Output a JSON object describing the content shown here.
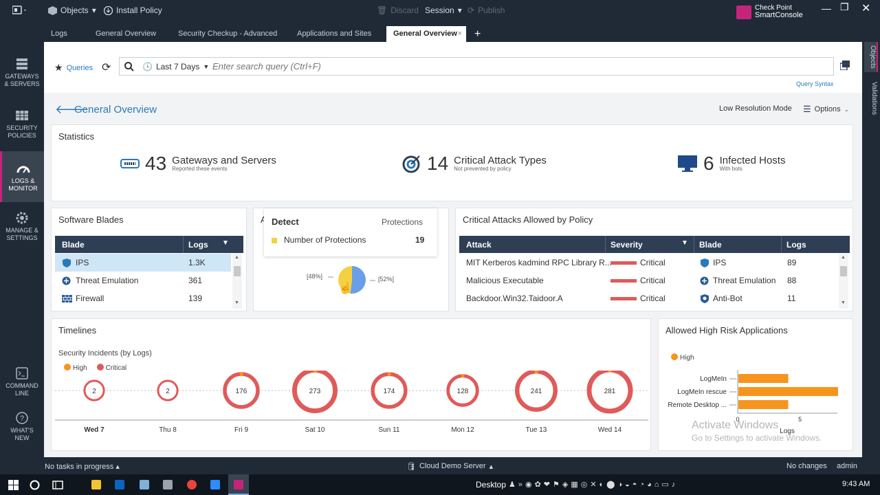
{
  "topbar": {
    "objects": "Objects",
    "install_policy": "Install Policy",
    "discard": "Discard",
    "session": "Session",
    "publish": "Publish",
    "brand_line1": "Check Point",
    "brand_line2": "SmartConsole"
  },
  "tabs": [
    "Logs",
    "General Overview",
    "Security Checkup - Advanced",
    "Applications and Sites",
    "General Overview"
  ],
  "sidenav": [
    {
      "label1": "GATEWAYS",
      "label2": "& SERVERS"
    },
    {
      "label1": "SECURITY",
      "label2": "POLICIES"
    },
    {
      "label1": "LOGS &",
      "label2": "MONITOR"
    },
    {
      "label1": "MANAGE &",
      "label2": "SETTINGS"
    },
    {
      "label1": "COMMAND",
      "label2": "LINE"
    },
    {
      "label1": "WHAT'S",
      "label2": "NEW"
    }
  ],
  "rightnav": {
    "objects": "Objects",
    "validations": "Validations"
  },
  "query": {
    "queries_label": "Queries",
    "time_range": "Last 7 Days",
    "search_placeholder": "Enter search query (Ctrl+F)",
    "syntax_link": "Query Syntax"
  },
  "view": {
    "title": "General Overview",
    "low_res": "Low Resolution Mode",
    "options": "Options"
  },
  "statistics": {
    "title": "Statistics",
    "items": [
      {
        "num": "43",
        "label": "Gateways and Servers",
        "sub": "Reported these events"
      },
      {
        "num": "14",
        "label": "Critical Attack Types",
        "sub": "Not prevented by policy"
      },
      {
        "num": "6",
        "label": "Infected Hosts",
        "sub": "With bots"
      }
    ]
  },
  "software_blades": {
    "title": "Software Blades",
    "col_blade": "Blade",
    "col_logs": "Logs",
    "rows": [
      {
        "blade": "IPS",
        "logs": "1.3K"
      },
      {
        "blade": "Threat Emulation",
        "logs": "361"
      },
      {
        "blade": "Firewall",
        "logs": "139"
      }
    ]
  },
  "protections": {
    "partial_title": "A",
    "tooltip_title": "Detect",
    "tooltip_col": "Protections",
    "tooltip_row_label": "Number of Protections",
    "tooltip_row_value": "19",
    "pie_left_label": "[48%]",
    "pie_right_label": "[52%]",
    "pie_values": [
      48,
      52
    ],
    "pie_colors": [
      "#f5d142",
      "#6a9ee8"
    ]
  },
  "critical_attacks": {
    "title": "Critical Attacks Allowed by Policy",
    "col_attack": "Attack",
    "col_severity": "Severity",
    "col_blade": "Blade",
    "col_logs": "Logs",
    "rows": [
      {
        "attack": "MIT Kerberos kadmind RPC Library R...",
        "severity": "Critical",
        "blade": "IPS",
        "logs": "89"
      },
      {
        "attack": "Malicious Executable",
        "severity": "Critical",
        "blade": "Threat Emulation",
        "logs": "88"
      },
      {
        "attack": "Backdoor.Win32.Taidoor.A",
        "severity": "Critical",
        "blade": "Anti-Bot",
        "logs": "11"
      }
    ]
  },
  "timelines": {
    "title": "Timelines",
    "subtitle": "Security Incidents (by Logs)",
    "legend_high": "High",
    "legend_critical": "Critical",
    "days": [
      {
        "day": "Wed 7",
        "value": "2"
      },
      {
        "day": "Thu 8",
        "value": "2"
      },
      {
        "day": "Fri 9",
        "value": "176"
      },
      {
        "day": "Sat 10",
        "value": "273"
      },
      {
        "day": "Sun 11",
        "value": "174"
      },
      {
        "day": "Mon 12",
        "value": "128"
      },
      {
        "day": "Tue 13",
        "value": "241"
      },
      {
        "day": "Wed 14",
        "value": "281"
      }
    ]
  },
  "high_risk_apps": {
    "title": "Allowed High Risk Applications",
    "legend": "High",
    "xlabel": "Logs",
    "tick0": "0",
    "tick5": "5"
  },
  "chart_data": {
    "type": "bar",
    "orientation": "horizontal",
    "categories": [
      "LogMeIn",
      "LogMeIn rescue",
      "Remote Desktop ..."
    ],
    "series": [
      {
        "name": "High",
        "values": [
          4,
          8,
          4
        ]
      }
    ],
    "xlabel": "Logs",
    "xlim": [
      0,
      8
    ],
    "bar_color": "#f7941d"
  },
  "watermark": {
    "line1": "Activate Windows",
    "line2": "Go to Settings to activate Windows."
  },
  "statusbar": {
    "tasks": "No tasks in progress",
    "server": "Cloud Demo Server",
    "changes": "No changes",
    "user": "admin"
  },
  "taskbar": {
    "desktop": "Desktop",
    "time": "9:43 AM"
  },
  "colors": {
    "accent": "#2a7ab8",
    "critical": "#e05a5a",
    "high": "#f7941d",
    "header": "#2e3f55"
  }
}
